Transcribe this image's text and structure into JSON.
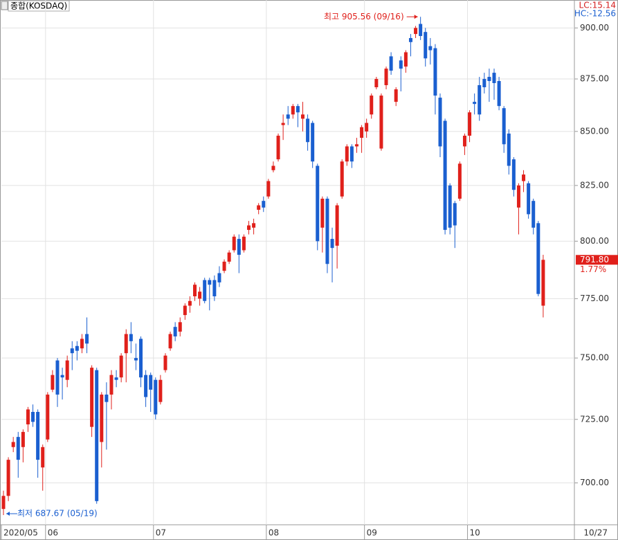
{
  "chart_data": {
    "type": "candlestick",
    "title": "종합(KOSDAQ)",
    "info": [
      {
        "text": "LC:15.14",
        "color": "#d42020"
      },
      {
        "text": "HC:-12.56",
        "color": "#1a5fd0"
      }
    ],
    "annotations": {
      "high": "최고 905.56 (09/16)",
      "low": "최저 687.67 (05/19)"
    },
    "last_price_label": "791.80",
    "change_label": "1.77%",
    "up_color": "#e0201b",
    "down_color": "#1a5fd0",
    "log_scale": true,
    "grid": true,
    "ylim": [
      684,
      914
    ],
    "yticks": [
      {
        "value": 700,
        "label": "700.00"
      },
      {
        "value": 725,
        "label": "725.00"
      },
      {
        "value": 750,
        "label": "750.00"
      },
      {
        "value": 775,
        "label": "775.00"
      },
      {
        "value": 800,
        "label": "800.00"
      },
      {
        "value": 825,
        "label": "825.00"
      },
      {
        "value": 850,
        "label": "850.00"
      },
      {
        "value": 875,
        "label": "875.00"
      },
      {
        "value": 900,
        "label": "900.00"
      }
    ],
    "categories": [
      "2020/05",
      null,
      null,
      null,
      null,
      null,
      null,
      null,
      null,
      "06",
      null,
      null,
      null,
      null,
      null,
      null,
      null,
      null,
      null,
      null,
      null,
      null,
      null,
      null,
      null,
      null,
      null,
      null,
      null,
      null,
      null,
      "07",
      null,
      null,
      null,
      null,
      null,
      null,
      null,
      null,
      null,
      null,
      null,
      null,
      null,
      null,
      null,
      null,
      null,
      null,
      null,
      null,
      null,
      null,
      "08",
      null,
      null,
      null,
      null,
      null,
      null,
      null,
      null,
      null,
      null,
      null,
      null,
      null,
      null,
      null,
      null,
      null,
      null,
      null,
      "09",
      null,
      null,
      null,
      null,
      null,
      null,
      null,
      null,
      null,
      null,
      null,
      null,
      null,
      null,
      null,
      null,
      null,
      null,
      null,
      null,
      "10",
      null,
      null,
      null,
      null,
      null,
      null,
      null,
      null,
      null,
      null,
      null,
      null,
      null,
      null,
      "10/27"
    ],
    "open": [
      690,
      695,
      714,
      718,
      714,
      723,
      728,
      728,
      706,
      717,
      737,
      749,
      743,
      741,
      754,
      755,
      754,
      760,
      722,
      745,
      716,
      735,
      735,
      742,
      742,
      752,
      760,
      750,
      758,
      743,
      743,
      741,
      732,
      745,
      754,
      763,
      761,
      768,
      772,
      776,
      775,
      783,
      783,
      783,
      786,
      787,
      791,
      796,
      801,
      796,
      805,
      806,
      814,
      818,
      820,
      832,
      837,
      853,
      858,
      858,
      862,
      856,
      856,
      854,
      834,
      806,
      819,
      801,
      798,
      820,
      836,
      843,
      843,
      847,
      850,
      858,
      871,
      842,
      872,
      886,
      864,
      884,
      881,
      895,
      897,
      902,
      898,
      891,
      890,
      866,
      855,
      825,
      817,
      819,
      843,
      848,
      864,
      872,
      875,
      876,
      878,
      874,
      861,
      849,
      837,
      815,
      827,
      826,
      818,
      808,
      772
    ],
    "high": [
      697,
      710,
      718,
      720,
      721,
      730,
      731,
      729,
      715,
      736,
      745,
      750,
      746,
      751,
      757,
      757,
      760,
      767,
      747,
      746,
      736,
      740,
      745,
      745,
      752,
      762,
      765,
      756,
      759,
      745,
      744,
      742,
      743,
      752,
      761,
      765,
      767,
      773,
      776,
      782,
      780,
      784,
      784,
      785,
      789,
      792,
      796,
      803,
      803,
      803,
      809,
      810,
      817,
      820,
      828,
      836,
      849,
      858,
      862,
      863,
      863,
      864,
      858,
      855,
      835,
      820,
      820,
      806,
      817,
      837,
      844,
      844,
      847,
      853,
      856,
      868,
      876,
      868,
      881,
      888,
      871,
      886,
      889,
      897,
      901,
      905.56,
      900,
      895,
      892,
      868,
      856,
      826,
      818,
      836,
      849,
      860,
      868,
      876,
      878,
      880,
      880,
      876,
      862,
      851,
      838,
      826,
      832,
      827,
      819,
      809,
      794
    ],
    "low": [
      687.67,
      693,
      712,
      702,
      708,
      720,
      722,
      702,
      697,
      716,
      736,
      730,
      733,
      738,
      745,
      749,
      752,
      752,
      718,
      692,
      706,
      713,
      729,
      738,
      740,
      740,
      752,
      745,
      738,
      730,
      728,
      725,
      731,
      744,
      753,
      757,
      759,
      766,
      769,
      774,
      772,
      773,
      770,
      774,
      780,
      786,
      790,
      795,
      786,
      795,
      803,
      803,
      812,
      813,
      819,
      831,
      836,
      846,
      853,
      856,
      852,
      850,
      841,
      833,
      796,
      795,
      786,
      782,
      788,
      819,
      834,
      833,
      840,
      840,
      847,
      856,
      870,
      841,
      870,
      877,
      862,
      869,
      878,
      886,
      895,
      894,
      881,
      882,
      858,
      838,
      803,
      803,
      797,
      818,
      839,
      845,
      858,
      855,
      868,
      864,
      865,
      860,
      840,
      830,
      820,
      803,
      822,
      810,
      803,
      776,
      767
    ],
    "close": [
      695,
      709,
      716,
      709,
      720,
      729,
      724,
      709,
      714,
      735,
      743,
      735,
      742,
      749,
      752,
      753,
      758,
      756,
      746,
      693,
      735,
      732,
      743,
      741,
      751,
      760,
      757,
      749,
      742,
      734,
      737,
      727,
      741,
      751,
      760,
      759,
      765,
      772,
      774,
      781,
      778,
      774,
      781,
      776,
      782,
      791,
      795,
      802,
      794,
      802,
      807,
      808,
      816,
      815,
      827,
      834,
      848,
      854,
      856,
      862,
      859,
      858,
      845,
      836,
      800,
      819,
      790,
      797,
      816,
      836,
      843,
      836,
      844,
      852,
      854,
      867,
      875,
      867,
      880,
      879,
      870,
      880,
      888,
      893,
      900,
      896,
      885,
      889,
      867,
      843,
      805,
      806,
      807,
      835,
      848,
      859,
      863,
      858,
      871,
      874,
      873,
      862,
      844,
      834,
      823,
      825,
      830,
      812,
      806,
      777,
      791.8
    ]
  }
}
